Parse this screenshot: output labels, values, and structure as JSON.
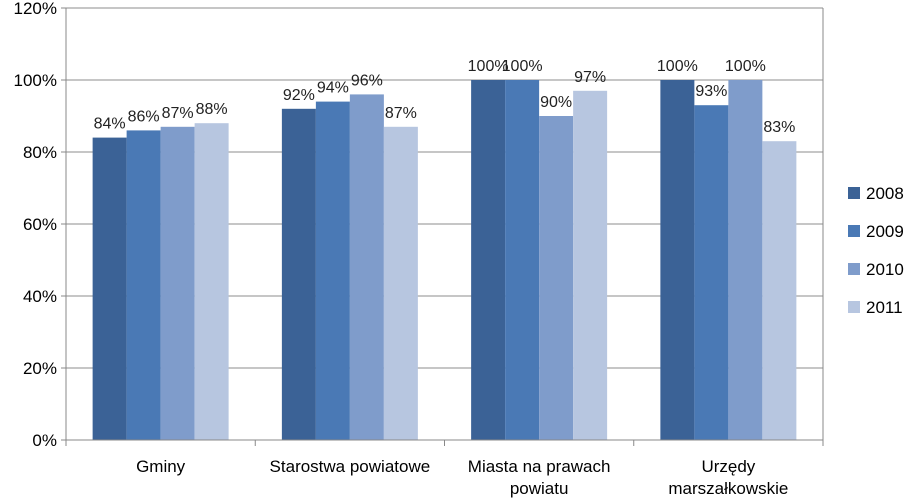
{
  "chart_data": {
    "type": "bar",
    "categories": [
      [
        "Gminy"
      ],
      [
        "Starostwa powiatowe"
      ],
      [
        "Miasta na prawach",
        "powiatu"
      ],
      [
        "Urzędy",
        "marszałkowskie"
      ]
    ],
    "series": [
      {
        "name": "2008",
        "color": "#3b6296",
        "values": [
          84,
          92,
          100,
          100
        ],
        "labels": [
          "84%",
          "92%",
          "100%",
          "100%"
        ]
      },
      {
        "name": "2009",
        "color": "#4a79b5",
        "values": [
          86,
          94,
          100,
          93
        ],
        "labels": [
          "86%",
          "94%",
          "100%",
          "93%"
        ]
      },
      {
        "name": "2010",
        "color": "#7f9ccb",
        "values": [
          87,
          96,
          90,
          100
        ],
        "labels": [
          "87%",
          "96%",
          "90%",
          "100%"
        ]
      },
      {
        "name": "2011",
        "color": "#b7c6e0",
        "values": [
          88,
          87,
          97,
          83
        ],
        "labels": [
          "88%",
          "87%",
          "97%",
          "83%"
        ]
      }
    ],
    "ylim": [
      0,
      120
    ],
    "yticks": [
      "0%",
      "20%",
      "40%",
      "60%",
      "80%",
      "100%",
      "120%"
    ],
    "title": "",
    "xlabel": "",
    "ylabel": "",
    "grid": true,
    "legend_position": "right"
  }
}
